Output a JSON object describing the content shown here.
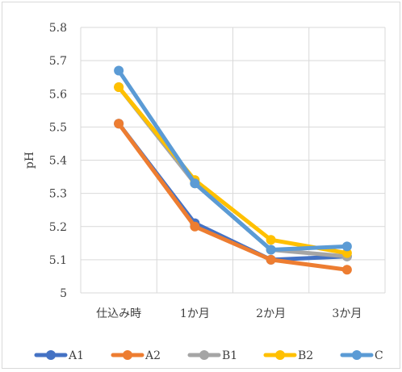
{
  "chart_data": {
    "type": "line",
    "title": "",
    "xlabel": "",
    "ylabel": "pH",
    "categories": [
      "仕込み時",
      "1か月",
      "2か月",
      "3か月"
    ],
    "ylim": [
      5,
      5.8
    ],
    "yticks": [
      "5",
      "5.1",
      "5.2",
      "5.3",
      "5.4",
      "5.5",
      "5.6",
      "5.7",
      "5.8"
    ],
    "grid": true,
    "legend_position": "bottom",
    "series": [
      {
        "name": "A1",
        "color": "#4472c4",
        "values": [
          5.51,
          5.21,
          5.1,
          5.11
        ]
      },
      {
        "name": "A2",
        "color": "#ed7d31",
        "values": [
          5.51,
          5.2,
          5.1,
          5.07
        ]
      },
      {
        "name": "B1",
        "color": "#a5a5a5",
        "values": [
          5.62,
          5.33,
          5.13,
          5.11
        ]
      },
      {
        "name": "B2",
        "color": "#ffc000",
        "values": [
          5.62,
          5.34,
          5.16,
          5.12
        ]
      },
      {
        "name": "C",
        "color": "#5b9bd5",
        "values": [
          5.67,
          5.33,
          5.13,
          5.14
        ]
      }
    ]
  }
}
